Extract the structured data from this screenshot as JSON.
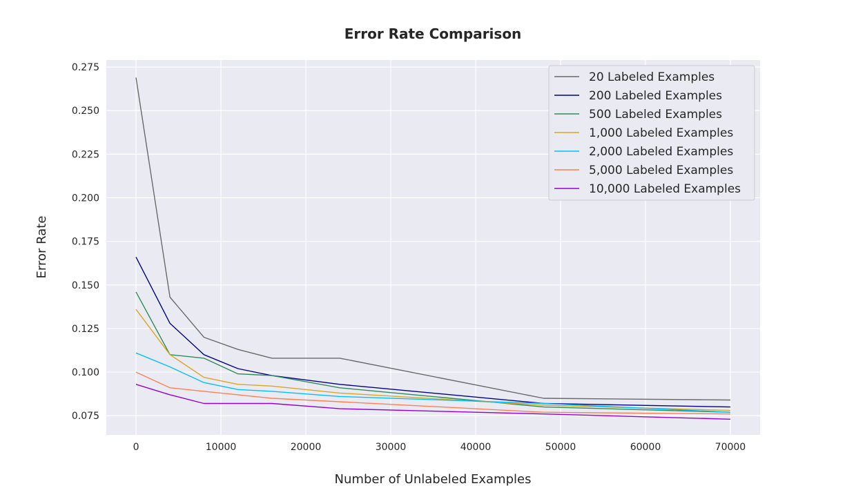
{
  "chart_data": {
    "type": "line",
    "title": "Error Rate Comparison",
    "xlabel": "Number of Unlabeled Examples",
    "ylabel": "Error Rate",
    "xlim": [
      -3500,
      73500
    ],
    "ylim": [
      0.064,
      0.279
    ],
    "xticks": [
      0,
      10000,
      20000,
      30000,
      40000,
      50000,
      60000,
      70000
    ],
    "xtick_labels": [
      "0",
      "10000",
      "20000",
      "30000",
      "40000",
      "50000",
      "60000",
      "70000"
    ],
    "yticks": [
      0.075,
      0.1,
      0.125,
      0.15,
      0.175,
      0.2,
      0.225,
      0.25,
      0.275
    ],
    "ytick_labels": [
      "0.075",
      "0.100",
      "0.125",
      "0.150",
      "0.175",
      "0.200",
      "0.225",
      "0.250",
      "0.275"
    ],
    "grid": true,
    "legend_position": "top-right",
    "x": [
      0,
      4000,
      8000,
      12000,
      16000,
      24000,
      48000,
      70000
    ],
    "series": [
      {
        "name": "20 Labeled Examples",
        "color": "#696969",
        "values": [
          0.269,
          0.143,
          0.12,
          0.113,
          0.108,
          0.108,
          0.085,
          0.084
        ]
      },
      {
        "name": "200 Labeled Examples",
        "color": "#00008b",
        "values": [
          0.166,
          0.128,
          0.11,
          0.102,
          0.098,
          0.093,
          0.082,
          0.08
        ]
      },
      {
        "name": "500 Labeled Examples",
        "color": "#2e8b57",
        "values": [
          0.146,
          0.11,
          0.108,
          0.099,
          0.098,
          0.091,
          0.08,
          0.077
        ]
      },
      {
        "name": "1,000 Labeled Examples",
        "color": "#daa520",
        "values": [
          0.136,
          0.11,
          0.097,
          0.093,
          0.092,
          0.088,
          0.081,
          0.078
        ]
      },
      {
        "name": "2,000 Labeled Examples",
        "color": "#00bfff",
        "values": [
          0.111,
          0.103,
          0.094,
          0.09,
          0.089,
          0.086,
          0.082,
          0.077
        ]
      },
      {
        "name": "5,000 Labeled Examples",
        "color": "#ff7f50",
        "values": [
          0.1,
          0.091,
          0.089,
          0.087,
          0.085,
          0.083,
          0.077,
          0.076
        ]
      },
      {
        "name": "10,000 Labeled Examples",
        "color": "#9400d3",
        "values": [
          0.093,
          0.087,
          0.082,
          0.082,
          0.082,
          0.079,
          0.076,
          0.073
        ]
      }
    ]
  }
}
